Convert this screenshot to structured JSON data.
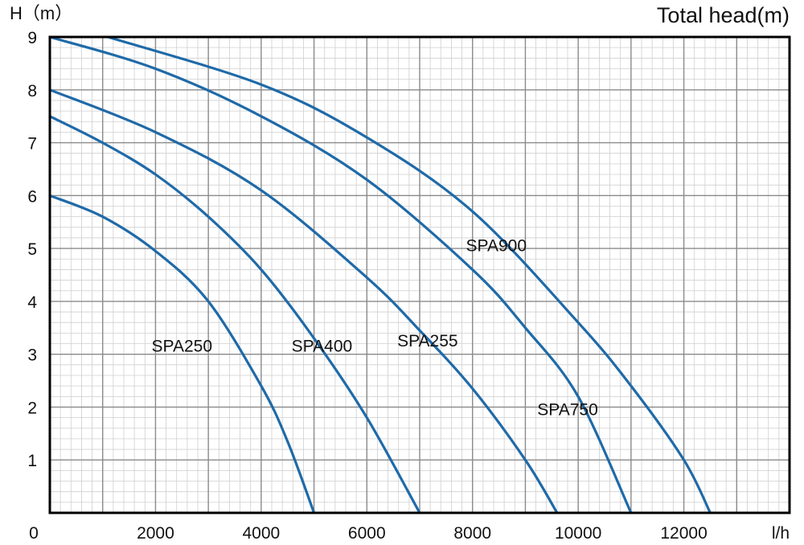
{
  "chart_data": {
    "type": "line",
    "title": "Total head(m)",
    "xlabel": "l/h",
    "ylabel": "H（m）",
    "xlim": [
      0,
      14000
    ],
    "ylim": [
      0,
      9
    ],
    "x_ticks": [
      "0",
      "2000",
      "4000",
      "6000",
      "8000",
      "10000",
      "12000"
    ],
    "y_ticks": [
      "1",
      "2",
      "3",
      "4",
      "5",
      "6",
      "7",
      "8",
      "9"
    ],
    "grid": true,
    "series_color": "#1f6aa8",
    "series": [
      {
        "name": "SPA250",
        "points": [
          [
            0,
            6.0
          ],
          [
            1000,
            5.6
          ],
          [
            2000,
            4.95
          ],
          [
            3000,
            4.0
          ],
          [
            4000,
            2.4
          ],
          [
            4500,
            1.35
          ],
          [
            5000,
            0
          ]
        ]
      },
      {
        "name": "SPA400",
        "points": [
          [
            0,
            7.5
          ],
          [
            1000,
            7.0
          ],
          [
            2000,
            6.4
          ],
          [
            3000,
            5.6
          ],
          [
            4000,
            4.6
          ],
          [
            5000,
            3.3
          ],
          [
            6000,
            1.8
          ],
          [
            7000,
            0
          ]
        ]
      },
      {
        "name": "SPA255",
        "points": [
          [
            0,
            8.0
          ],
          [
            2000,
            7.2
          ],
          [
            4000,
            6.1
          ],
          [
            6000,
            4.45
          ],
          [
            7000,
            3.45
          ],
          [
            8000,
            2.35
          ],
          [
            9000,
            1.0
          ],
          [
            9600,
            0
          ]
        ]
      },
      {
        "name": "SPA750",
        "points": [
          [
            0,
            9.0
          ],
          [
            2000,
            8.4
          ],
          [
            4000,
            7.5
          ],
          [
            6000,
            6.3
          ],
          [
            8000,
            4.6
          ],
          [
            9000,
            3.5
          ],
          [
            10000,
            2.2
          ],
          [
            11000,
            0
          ]
        ]
      },
      {
        "name": "SPA900",
        "points": [
          [
            1100,
            9.0
          ],
          [
            4000,
            8.1
          ],
          [
            6000,
            7.1
          ],
          [
            8000,
            5.7
          ],
          [
            10000,
            3.6
          ],
          [
            11000,
            2.4
          ],
          [
            12000,
            1.0
          ],
          [
            12500,
            0
          ]
        ]
      }
    ]
  }
}
